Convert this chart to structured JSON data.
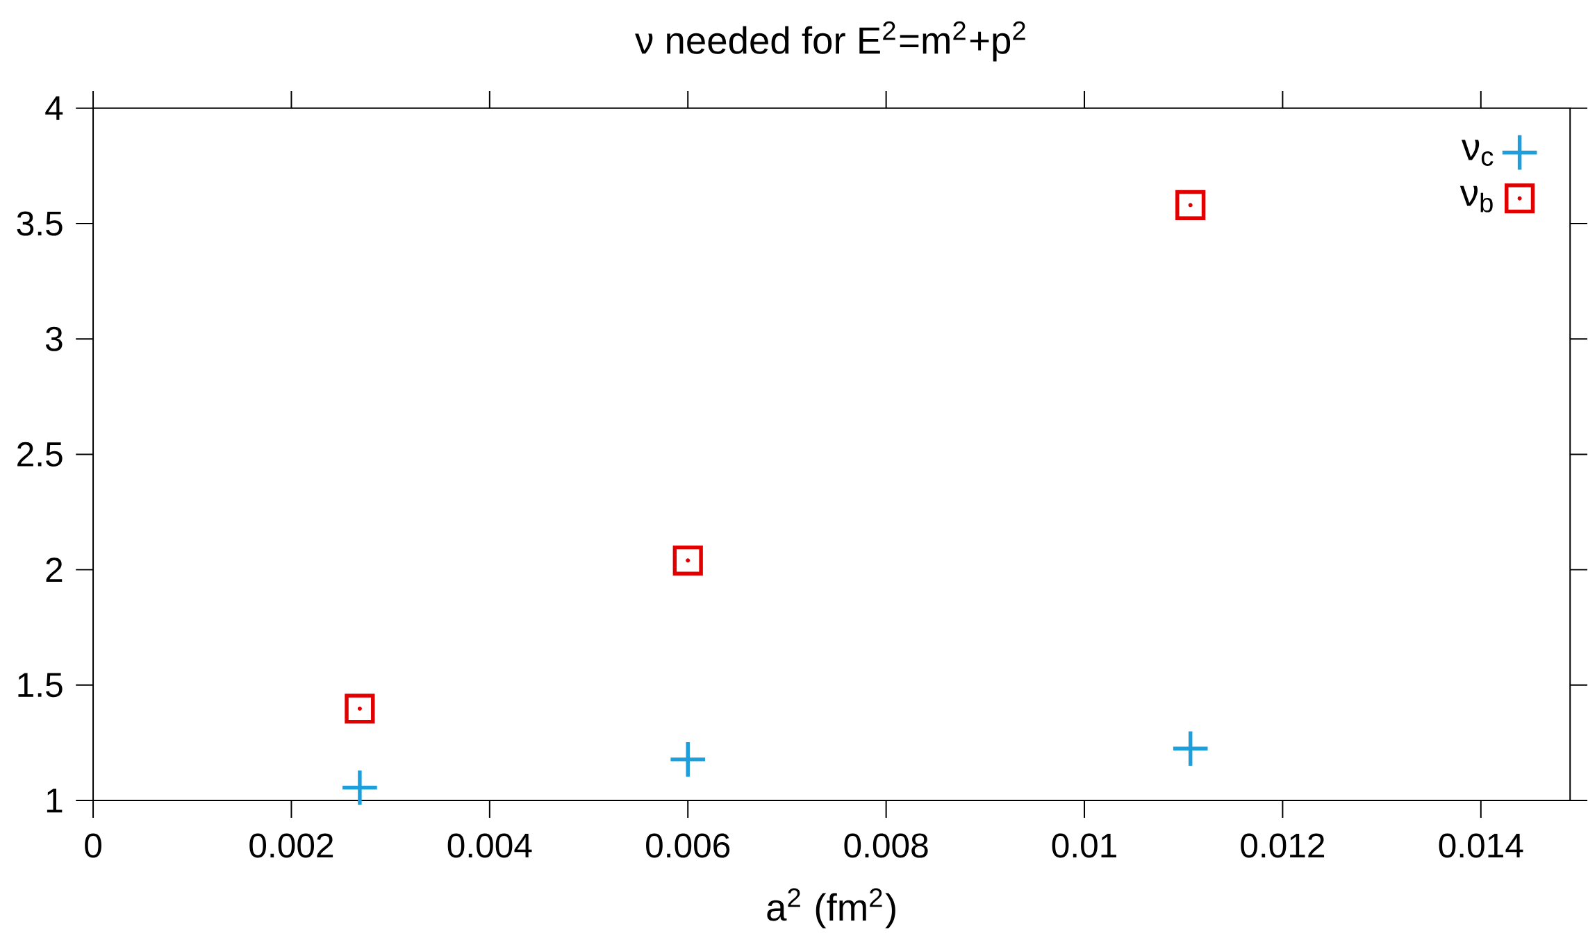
{
  "chart_data": {
    "type": "scatter",
    "title": "ν needed for E$^{2}$=m$^{2}$+p$^{2}$",
    "xlabel": "a$^{2}$ (fm$^{2}$)",
    "xlim": [
      0,
      0.0149
    ],
    "xticks": [
      0,
      0.002,
      0.004,
      0.006,
      0.008,
      0.01,
      0.012,
      0.014
    ],
    "ylim": [
      1,
      4
    ],
    "yticks": [
      1,
      1.5,
      2,
      2.5,
      3,
      3.5,
      4
    ],
    "x": [
      0.00269,
      0.006,
      0.01107
    ],
    "series": [
      {
        "name": "ν$_{c}$",
        "color": "#1e9fdc",
        "marker": "cross",
        "values": [
          1.056,
          1.178,
          1.225
        ]
      },
      {
        "name": "ν$_{b}$",
        "color": "#e00000",
        "marker": "square",
        "values": [
          1.398,
          2.04,
          3.58
        ]
      }
    ],
    "legend": "top right",
    "grid": false
  }
}
